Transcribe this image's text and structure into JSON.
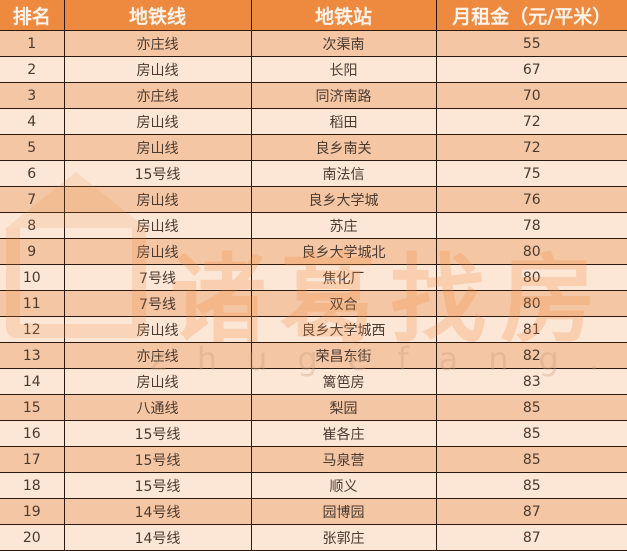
{
  "table": {
    "headers": [
      "排名",
      "地铁线",
      "地铁站",
      "月租金（元/平米）"
    ],
    "rows": [
      [
        "1",
        "亦庄线",
        "次渠南",
        "55"
      ],
      [
        "2",
        "房山线",
        "长阳",
        "67"
      ],
      [
        "3",
        "亦庄线",
        "同济南路",
        "70"
      ],
      [
        "4",
        "房山线",
        "稻田",
        "72"
      ],
      [
        "5",
        "房山线",
        "良乡南关",
        "72"
      ],
      [
        "6",
        "15号线",
        "南法信",
        "75"
      ],
      [
        "7",
        "房山线",
        "良乡大学城",
        "76"
      ],
      [
        "8",
        "房山线",
        "苏庄",
        "78"
      ],
      [
        "9",
        "房山线",
        "良乡大学城北",
        "80"
      ],
      [
        "10",
        "7号线",
        "焦化厂",
        "80"
      ],
      [
        "11",
        "7号线",
        "双合",
        "80"
      ],
      [
        "12",
        "房山线",
        "良乡大学城西",
        "81"
      ],
      [
        "13",
        "亦庄线",
        "荣昌东街",
        "82"
      ],
      [
        "14",
        "房山线",
        "篱笆房",
        "83"
      ],
      [
        "15",
        "八通线",
        "梨园",
        "85"
      ],
      [
        "16",
        "15号线",
        "崔各庄",
        "85"
      ],
      [
        "17",
        "15号线",
        "马泉营",
        "85"
      ],
      [
        "18",
        "15号线",
        "顺义",
        "85"
      ],
      [
        "19",
        "14号线",
        "园博园",
        "87"
      ],
      [
        "20",
        "14号线",
        "张郭庄",
        "87"
      ]
    ]
  },
  "watermark": {
    "brand": "诸葛找房",
    "url": "zhugefang.com"
  },
  "colors": {
    "header": "#ee8a40",
    "row_odd": "#f5c6a3",
    "row_even": "#fce6d6"
  }
}
